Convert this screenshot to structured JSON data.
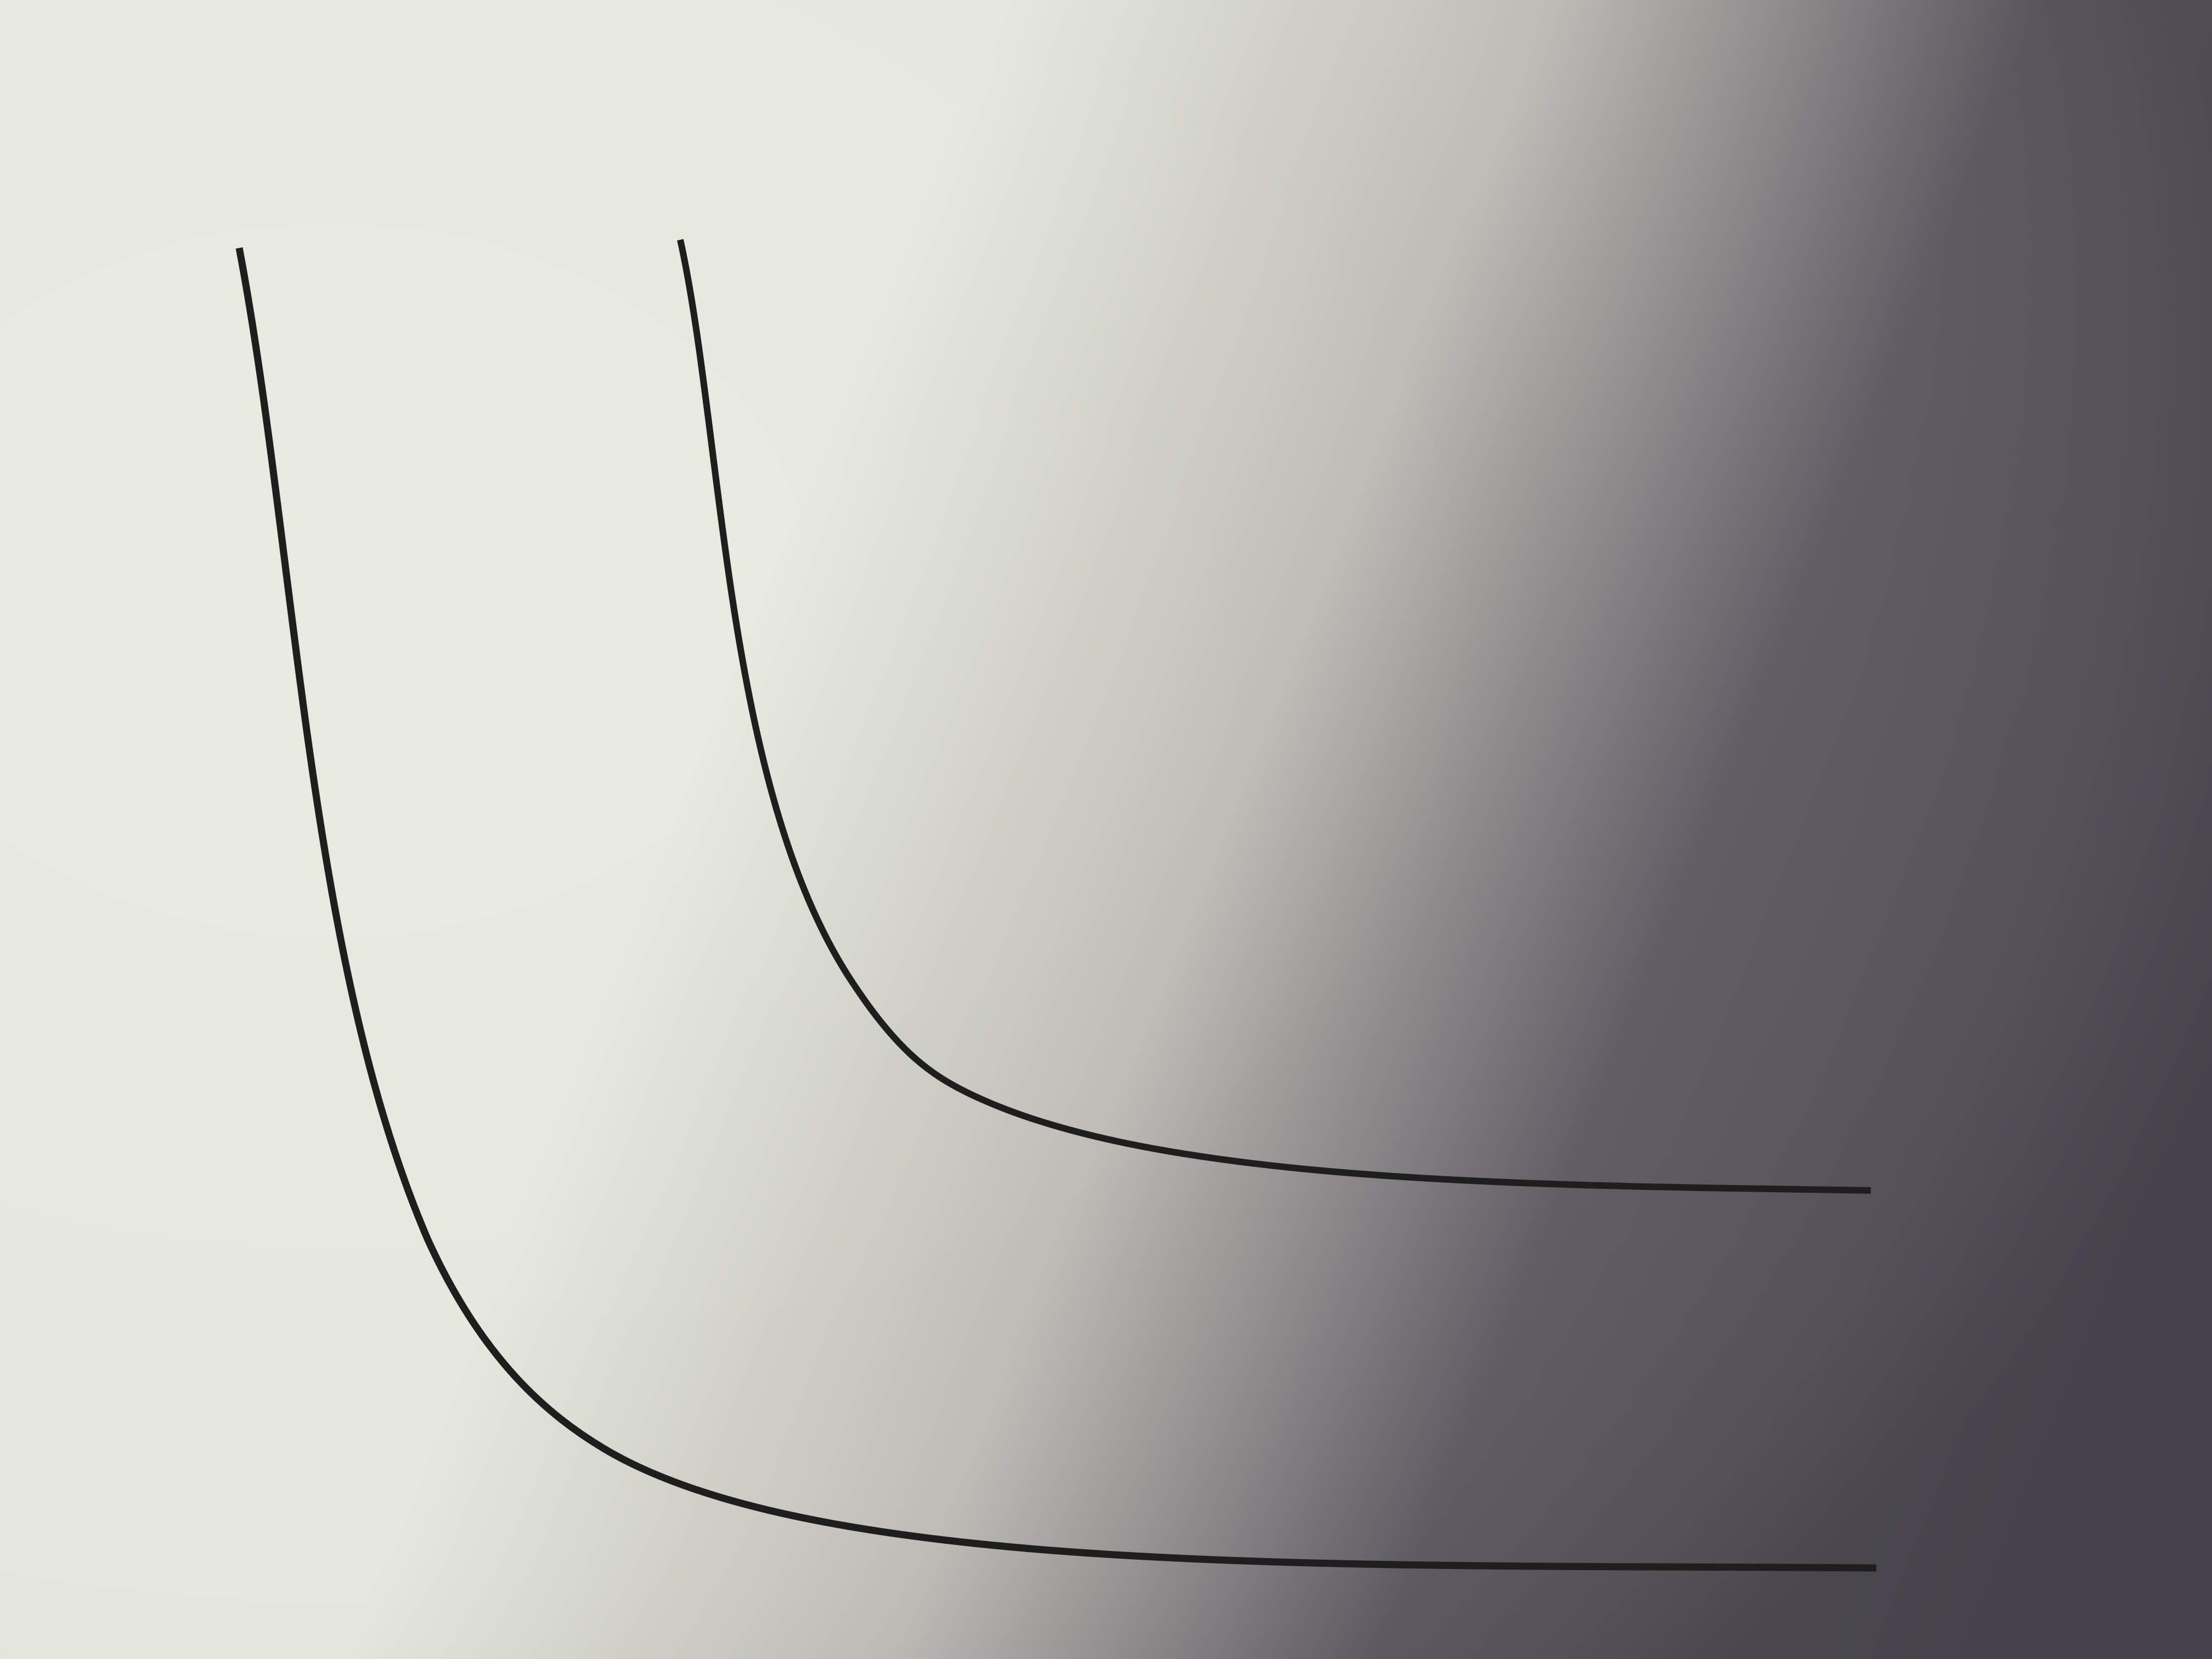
{
  "scene": {
    "subject": "photo",
    "paper_colors": {
      "light": "#e6e8de",
      "mid": "#bdbbb6",
      "shadow": "#5e5a62",
      "deep_shadow": "#4f4b55"
    },
    "ink_color": "#1e1e1e"
  }
}
